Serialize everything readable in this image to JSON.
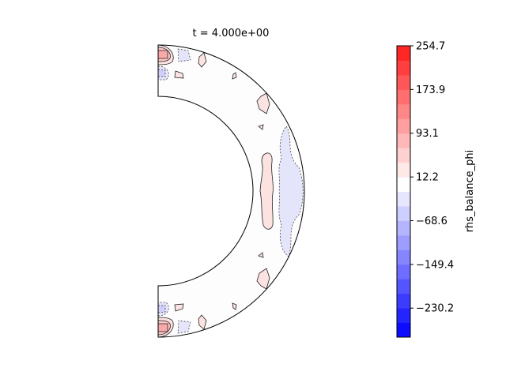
{
  "chart_data": {
    "type": "heatmap",
    "subtype": "filled contour on meridional half-annulus",
    "title": "t = 4.000e+00",
    "colorbar": {
      "label": "rhs_balance_phi",
      "colormap": "bwr",
      "range": [
        -283.9,
        254.7
      ],
      "n_levels": 20,
      "ticks": [
        254.7,
        173.9,
        93.1,
        12.2,
        -68.6,
        -149.4,
        -230.2
      ],
      "tick_labels": [
        "254.7",
        "173.9",
        "93.1",
        "12.2",
        "−68.6",
        "−149.4",
        "−230.2"
      ]
    },
    "features": [
      {
        "region": "near poles, inner radius",
        "sign": "positive",
        "max_level": "~120"
      },
      {
        "region": "near poles",
        "sign": "negative",
        "level": "~-40"
      },
      {
        "region": "equatorial mid-shell",
        "sign": "positive",
        "level": "~20"
      },
      {
        "region": "equatorial outer boundary",
        "sign": "negative",
        "level": "~-20"
      }
    ],
    "grid": false,
    "axes_visible": false
  }
}
